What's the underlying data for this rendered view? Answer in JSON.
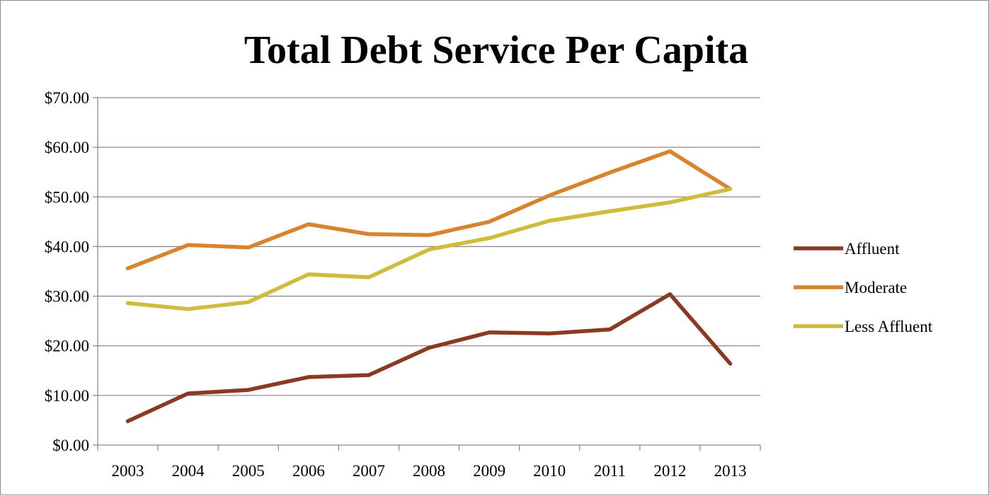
{
  "chart_data": {
    "type": "line",
    "title": "Total Debt Service Per Capita",
    "xlabel": "",
    "ylabel": "",
    "categories": [
      "2003",
      "2004",
      "2005",
      "2006",
      "2007",
      "2008",
      "2009",
      "2010",
      "2011",
      "2012",
      "2013"
    ],
    "y_tick_labels": [
      "$0.00",
      "$10.00",
      "$20.00",
      "$30.00",
      "$40.00",
      "$50.00",
      "$60.00",
      "$70.00"
    ],
    "ylim": [
      0,
      70
    ],
    "grid": true,
    "legend_position": "right",
    "series": [
      {
        "name": "Affluent",
        "color": "#8b3a22",
        "values": [
          4.8,
          10.4,
          11.1,
          13.7,
          14.1,
          19.6,
          22.7,
          22.5,
          23.3,
          30.4,
          16.4
        ]
      },
      {
        "name": "Moderate",
        "color": "#d8832d",
        "values": [
          35.6,
          40.3,
          39.8,
          44.5,
          42.5,
          42.3,
          45.0,
          50.3,
          54.9,
          59.2,
          51.6
        ]
      },
      {
        "name": "Less Affluent",
        "color": "#cdbd3a",
        "values": [
          28.6,
          27.4,
          28.8,
          34.4,
          33.8,
          39.4,
          41.7,
          45.2,
          47.1,
          48.9,
          51.6
        ]
      }
    ]
  }
}
